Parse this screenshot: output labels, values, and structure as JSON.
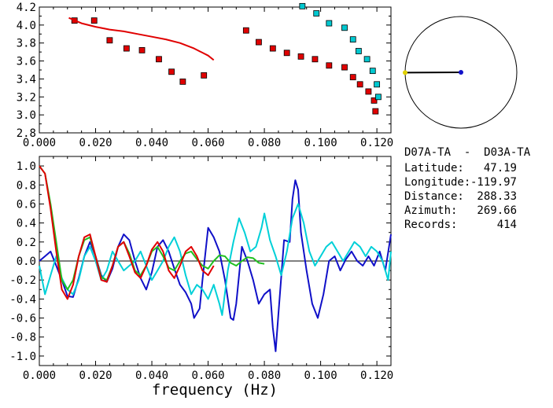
{
  "chart_data": [
    {
      "type": "scatter",
      "panel": "dispersion",
      "xlim": [
        0.0,
        0.125
      ],
      "ylim": [
        2.8,
        4.2
      ],
      "x_ticks": [
        "0.000",
        "0.020",
        "0.040",
        "0.060",
        "0.080",
        "0.100",
        "0.120"
      ],
      "y_ticks": [
        "2.8",
        "3.0",
        "3.2",
        "3.4",
        "3.6",
        "3.8",
        "4.0",
        "4.2"
      ],
      "series": [
        {
          "kind": "markers",
          "color": "#e00000",
          "points": [
            [
              0.0125,
              4.05
            ],
            [
              0.0195,
              4.05
            ],
            [
              0.025,
              3.83
            ],
            [
              0.031,
              3.74
            ],
            [
              0.0365,
              3.72
            ],
            [
              0.0425,
              3.62
            ],
            [
              0.047,
              3.48
            ],
            [
              0.051,
              3.37
            ],
            [
              0.0585,
              3.44
            ],
            [
              0.0735,
              3.94
            ],
            [
              0.078,
              3.81
            ],
            [
              0.083,
              3.74
            ],
            [
              0.088,
              3.69
            ],
            [
              0.093,
              3.65
            ],
            [
              0.098,
              3.62
            ],
            [
              0.103,
              3.55
            ],
            [
              0.1085,
              3.53
            ],
            [
              0.1115,
              3.42
            ],
            [
              0.114,
              3.34
            ],
            [
              0.117,
              3.26
            ],
            [
              0.119,
              3.16
            ],
            [
              0.1195,
              3.04
            ]
          ]
        },
        {
          "kind": "markers",
          "color": "#00c8d0",
          "points": [
            [
              0.0935,
              4.21
            ],
            [
              0.0985,
              4.13
            ],
            [
              0.103,
              4.02
            ],
            [
              0.1085,
              3.97
            ],
            [
              0.1115,
              3.84
            ],
            [
              0.1135,
              3.71
            ],
            [
              0.1165,
              3.62
            ],
            [
              0.1185,
              3.49
            ],
            [
              0.12,
              3.34
            ],
            [
              0.1205,
              3.2
            ]
          ]
        },
        {
          "kind": "line",
          "color": "#e00000",
          "points": [
            [
              0.0105,
              4.08
            ],
            [
              0.015,
              4.02
            ],
            [
              0.02,
              3.98
            ],
            [
              0.025,
              3.95
            ],
            [
              0.03,
              3.93
            ],
            [
              0.035,
              3.9
            ],
            [
              0.04,
              3.87
            ],
            [
              0.045,
              3.84
            ],
            [
              0.05,
              3.8
            ],
            [
              0.055,
              3.74
            ],
            [
              0.06,
              3.66
            ],
            [
              0.062,
              3.61
            ]
          ]
        }
      ]
    },
    {
      "type": "line",
      "panel": "correlation",
      "xlabel": "frequency (Hz)",
      "xlim": [
        0.0,
        0.125
      ],
      "ylim": [
        -1.1,
        1.1
      ],
      "x_ticks": [
        "0.000",
        "0.020",
        "0.040",
        "0.060",
        "0.080",
        "0.100",
        "0.120"
      ],
      "y_ticks": [
        "-1.0",
        "-0.8",
        "-0.6",
        "-0.4",
        "-0.2",
        "0.0",
        "0.2",
        "0.4",
        "0.6",
        "0.8",
        "1.0"
      ],
      "series": [
        {
          "color": "#1010c8",
          "points": [
            [
              0,
              0.0
            ],
            [
              0.002,
              0.05
            ],
            [
              0.004,
              0.1
            ],
            [
              0.006,
              -0.05
            ],
            [
              0.008,
              -0.2
            ],
            [
              0.01,
              -0.37
            ],
            [
              0.012,
              -0.38
            ],
            [
              0.014,
              -0.18
            ],
            [
              0.016,
              0.05
            ],
            [
              0.018,
              0.2
            ],
            [
              0.02,
              0.05
            ],
            [
              0.022,
              -0.15
            ],
            [
              0.024,
              -0.22
            ],
            [
              0.026,
              -0.08
            ],
            [
              0.028,
              0.15
            ],
            [
              0.03,
              0.28
            ],
            [
              0.032,
              0.22
            ],
            [
              0.034,
              0.0
            ],
            [
              0.036,
              -0.18
            ],
            [
              0.038,
              -0.3
            ],
            [
              0.04,
              -0.12
            ],
            [
              0.042,
              0.15
            ],
            [
              0.044,
              0.22
            ],
            [
              0.046,
              0.1
            ],
            [
              0.048,
              -0.08
            ],
            [
              0.05,
              -0.25
            ],
            [
              0.052,
              -0.33
            ],
            [
              0.054,
              -0.45
            ],
            [
              0.055,
              -0.6
            ],
            [
              0.057,
              -0.5
            ],
            [
              0.058,
              -0.2
            ],
            [
              0.06,
              0.35
            ],
            [
              0.062,
              0.25
            ],
            [
              0.064,
              0.1
            ],
            [
              0.066,
              -0.2
            ],
            [
              0.068,
              -0.6
            ],
            [
              0.069,
              -0.62
            ],
            [
              0.07,
              -0.45
            ],
            [
              0.072,
              0.15
            ],
            [
              0.074,
              0.0
            ],
            [
              0.076,
              -0.2
            ],
            [
              0.078,
              -0.45
            ],
            [
              0.08,
              -0.35
            ],
            [
              0.082,
              -0.3
            ],
            [
              0.083,
              -0.7
            ],
            [
              0.084,
              -0.95
            ],
            [
              0.085,
              -0.55
            ],
            [
              0.087,
              0.22
            ],
            [
              0.089,
              0.2
            ],
            [
              0.09,
              0.65
            ],
            [
              0.091,
              0.85
            ],
            [
              0.092,
              0.75
            ],
            [
              0.093,
              0.3
            ],
            [
              0.095,
              -0.1
            ],
            [
              0.097,
              -0.45
            ],
            [
              0.099,
              -0.6
            ],
            [
              0.101,
              -0.35
            ],
            [
              0.103,
              0.0
            ],
            [
              0.105,
              0.05
            ],
            [
              0.107,
              -0.1
            ],
            [
              0.109,
              0.02
            ],
            [
              0.111,
              0.1
            ],
            [
              0.113,
              0.0
            ],
            [
              0.115,
              -0.05
            ],
            [
              0.117,
              0.05
            ],
            [
              0.119,
              -0.05
            ],
            [
              0.121,
              0.1
            ],
            [
              0.123,
              -0.1
            ],
            [
              0.125,
              0.28
            ]
          ]
        },
        {
          "color": "#00d0d8",
          "points": [
            [
              0,
              -0.05
            ],
            [
              0.002,
              -0.35
            ],
            [
              0.004,
              -0.15
            ],
            [
              0.006,
              0.05
            ],
            [
              0.008,
              -0.18
            ],
            [
              0.01,
              -0.3
            ],
            [
              0.012,
              -0.35
            ],
            [
              0.014,
              -0.2
            ],
            [
              0.016,
              0.05
            ],
            [
              0.018,
              0.15
            ],
            [
              0.02,
              0.0
            ],
            [
              0.022,
              -0.2
            ],
            [
              0.024,
              -0.1
            ],
            [
              0.026,
              0.1
            ],
            [
              0.028,
              0.0
            ],
            [
              0.03,
              -0.1
            ],
            [
              0.032,
              -0.05
            ],
            [
              0.034,
              0.0
            ],
            [
              0.036,
              0.1
            ],
            [
              0.038,
              -0.05
            ],
            [
              0.04,
              -0.2
            ],
            [
              0.042,
              -0.1
            ],
            [
              0.044,
              0.0
            ],
            [
              0.046,
              0.15
            ],
            [
              0.048,
              0.25
            ],
            [
              0.05,
              0.1
            ],
            [
              0.052,
              -0.15
            ],
            [
              0.054,
              -0.35
            ],
            [
              0.056,
              -0.25
            ],
            [
              0.058,
              -0.3
            ],
            [
              0.06,
              -0.4
            ],
            [
              0.062,
              -0.25
            ],
            [
              0.064,
              -0.45
            ],
            [
              0.065,
              -0.57
            ],
            [
              0.067,
              -0.1
            ],
            [
              0.069,
              0.2
            ],
            [
              0.071,
              0.45
            ],
            [
              0.073,
              0.3
            ],
            [
              0.075,
              0.1
            ],
            [
              0.077,
              0.15
            ],
            [
              0.079,
              0.35
            ],
            [
              0.08,
              0.5
            ],
            [
              0.082,
              0.22
            ],
            [
              0.084,
              0.05
            ],
            [
              0.086,
              -0.15
            ],
            [
              0.088,
              0.1
            ],
            [
              0.09,
              0.45
            ],
            [
              0.092,
              0.6
            ],
            [
              0.094,
              0.4
            ],
            [
              0.096,
              0.1
            ],
            [
              0.098,
              -0.05
            ],
            [
              0.1,
              0.05
            ],
            [
              0.102,
              0.15
            ],
            [
              0.104,
              0.2
            ],
            [
              0.106,
              0.1
            ],
            [
              0.108,
              0.0
            ],
            [
              0.11,
              0.1
            ],
            [
              0.112,
              0.2
            ],
            [
              0.114,
              0.15
            ],
            [
              0.116,
              0.05
            ],
            [
              0.118,
              0.15
            ],
            [
              0.12,
              0.1
            ],
            [
              0.122,
              0.0
            ],
            [
              0.124,
              -0.2
            ],
            [
              0.125,
              0.1
            ]
          ]
        },
        {
          "color": "#20c020",
          "points": [
            [
              0,
              1.0
            ],
            [
              0.002,
              0.92
            ],
            [
              0.004,
              0.6
            ],
            [
              0.006,
              0.2
            ],
            [
              0.008,
              -0.2
            ],
            [
              0.01,
              -0.3
            ],
            [
              0.012,
              -0.2
            ],
            [
              0.014,
              0.05
            ],
            [
              0.016,
              0.22
            ],
            [
              0.018,
              0.25
            ],
            [
              0.02,
              0.05
            ],
            [
              0.022,
              -0.17
            ],
            [
              0.024,
              -0.2
            ],
            [
              0.026,
              -0.05
            ],
            [
              0.028,
              0.15
            ],
            [
              0.03,
              0.2
            ],
            [
              0.032,
              0.08
            ],
            [
              0.034,
              -0.1
            ],
            [
              0.036,
              -0.15
            ],
            [
              0.038,
              -0.05
            ],
            [
              0.04,
              0.1
            ],
            [
              0.042,
              0.15
            ],
            [
              0.044,
              0.05
            ],
            [
              0.046,
              -0.07
            ],
            [
              0.048,
              -0.1
            ],
            [
              0.05,
              0.0
            ],
            [
              0.052,
              0.08
            ],
            [
              0.054,
              0.1
            ],
            [
              0.056,
              0.02
            ],
            [
              0.058,
              -0.05
            ],
            [
              0.06,
              -0.08
            ],
            [
              0.062,
              0.0
            ],
            [
              0.064,
              0.06
            ],
            [
              0.066,
              0.05
            ],
            [
              0.068,
              -0.02
            ],
            [
              0.07,
              -0.05
            ],
            [
              0.072,
              0.0
            ],
            [
              0.074,
              0.04
            ],
            [
              0.076,
              0.03
            ],
            [
              0.078,
              -0.02
            ],
            [
              0.08,
              -0.03
            ]
          ]
        },
        {
          "color": "#e00000",
          "points": [
            [
              0,
              1.0
            ],
            [
              0.002,
              0.92
            ],
            [
              0.004,
              0.55
            ],
            [
              0.006,
              0.1
            ],
            [
              0.008,
              -0.3
            ],
            [
              0.01,
              -0.4
            ],
            [
              0.012,
              -0.25
            ],
            [
              0.014,
              0.05
            ],
            [
              0.016,
              0.25
            ],
            [
              0.018,
              0.28
            ],
            [
              0.02,
              0.05
            ],
            [
              0.022,
              -0.2
            ],
            [
              0.024,
              -0.22
            ],
            [
              0.026,
              -0.05
            ],
            [
              0.028,
              0.15
            ],
            [
              0.03,
              0.2
            ],
            [
              0.032,
              0.05
            ],
            [
              0.034,
              -0.12
            ],
            [
              0.036,
              -0.18
            ],
            [
              0.038,
              -0.05
            ],
            [
              0.04,
              0.12
            ],
            [
              0.042,
              0.2
            ],
            [
              0.044,
              0.1
            ],
            [
              0.046,
              -0.1
            ],
            [
              0.048,
              -0.18
            ],
            [
              0.05,
              -0.05
            ],
            [
              0.052,
              0.1
            ],
            [
              0.054,
              0.15
            ],
            [
              0.056,
              0.05
            ],
            [
              0.058,
              -0.1
            ],
            [
              0.06,
              -0.15
            ],
            [
              0.062,
              -0.05
            ]
          ]
        }
      ]
    }
  ],
  "azimuth_dial": {
    "azimuth_deg": 269.66,
    "line_color": "#000000",
    "end_color": "#e0d000",
    "center_color": "#1010c8"
  },
  "station_info": {
    "title": "D07A-TA  -  D03A-TA",
    "rows": [
      {
        "label": "Latitude:",
        "value": "47.19"
      },
      {
        "label": "Longitude:",
        "value": "-119.97"
      },
      {
        "label": "Distance:",
        "value": "288.33"
      },
      {
        "label": "Azimuth:",
        "value": "269.66"
      },
      {
        "label": "Records:",
        "value": "414"
      }
    ]
  }
}
